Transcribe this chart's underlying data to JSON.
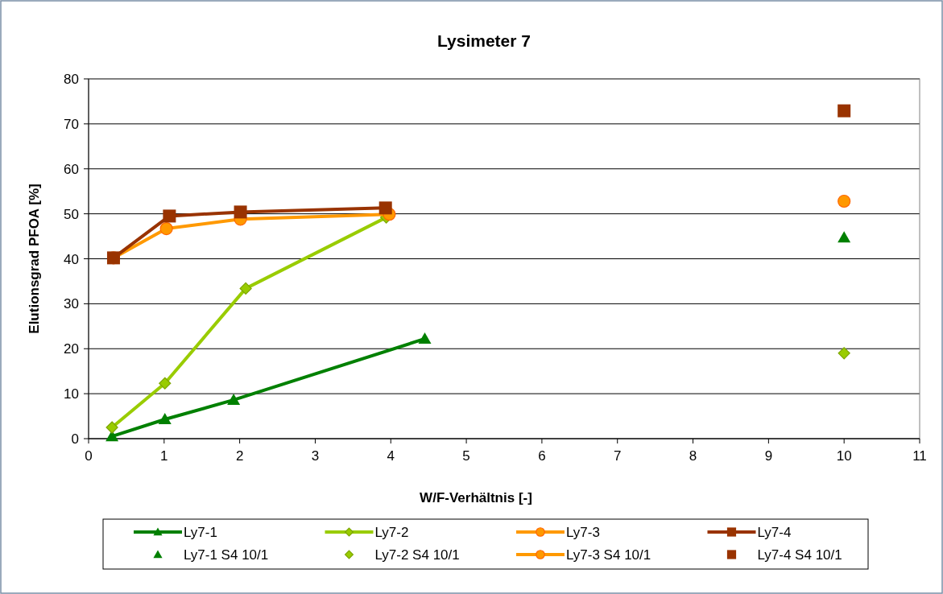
{
  "chart_data": {
    "type": "line",
    "title": "Lysimeter 7",
    "xlabel": "W/F-Verhältnis [-]",
    "ylabel": "Elutionsgrad PFOA [%]",
    "xlim": [
      0,
      11
    ],
    "xticks": [
      0,
      1,
      2,
      3,
      4,
      5,
      6,
      7,
      8,
      9,
      10,
      11
    ],
    "ylim": [
      0,
      80
    ],
    "yticks": [
      0,
      10,
      20,
      30,
      40,
      50,
      60,
      70,
      80
    ],
    "grid": "y",
    "legend": "bottom",
    "series": [
      {
        "name": "Ly7-1",
        "marker": "triangle",
        "color": "#008000",
        "x": [
          0.31,
          1.01,
          1.92,
          4.45
        ],
        "values": [
          0.5,
          4.3,
          8.6,
          22.2
        ]
      },
      {
        "name": "Ly7-2",
        "marker": "diamond",
        "color": "#99cc00",
        "x": [
          0.31,
          1.01,
          2.08,
          3.94
        ],
        "values": [
          2.5,
          12.3,
          33.4,
          49.2
        ]
      },
      {
        "name": "Ly7-3",
        "marker": "circle",
        "color": "#ff9900",
        "x": [
          0.33,
          1.03,
          2.01,
          3.98
        ],
        "values": [
          40.2,
          46.7,
          48.8,
          49.9
        ]
      },
      {
        "name": "Ly7-4",
        "marker": "square",
        "color": "#993300",
        "x": [
          0.33,
          1.07,
          2.01,
          3.93
        ],
        "values": [
          40.2,
          49.5,
          50.4,
          51.3
        ]
      },
      {
        "name": "Ly7-1 S4 10/1",
        "type": "scatter",
        "marker": "triangle",
        "color": "#008000",
        "x": [
          10
        ],
        "values": [
          44.7
        ]
      },
      {
        "name": "Ly7-2 S4 10/1",
        "type": "scatter",
        "marker": "diamond",
        "color": "#99cc00",
        "x": [
          10
        ],
        "values": [
          19
        ]
      },
      {
        "name": "Ly7-3 S4 10/1",
        "marker": "circle",
        "color": "#ff9900",
        "x": [
          10
        ],
        "values": [
          52.8
        ]
      },
      {
        "name": "Ly7-4 S4 10/1",
        "type": "scatter",
        "marker": "square",
        "color": "#993300",
        "x": [
          10
        ],
        "values": [
          72.9
        ]
      }
    ]
  }
}
